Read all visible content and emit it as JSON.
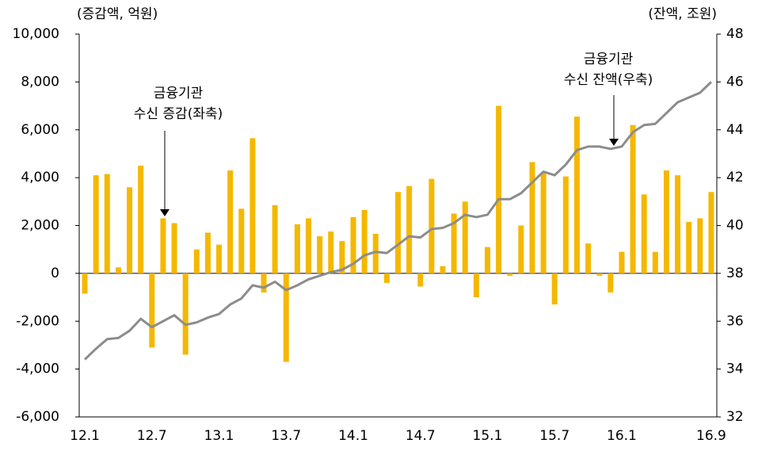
{
  "chart_data": {
    "type": "bar-line",
    "y_label": "(증감액, 억원)",
    "y2_label": "(잔액, 조원)",
    "categories": [
      "12.1",
      null,
      null,
      null,
      null,
      null,
      "12.7",
      null,
      null,
      null,
      null,
      null,
      "13.1",
      null,
      null,
      null,
      null,
      null,
      "13.7",
      null,
      null,
      null,
      null,
      null,
      "14.1",
      null,
      null,
      null,
      null,
      null,
      "14.7",
      null,
      null,
      null,
      null,
      null,
      "15.1",
      null,
      null,
      null,
      null,
      null,
      "15.7",
      null,
      null,
      null,
      null,
      null,
      "16.1",
      null,
      null,
      null,
      null,
      null,
      null,
      null,
      "16.9"
    ],
    "series": [
      {
        "type": "bar",
        "color": "#f5b800",
        "values": [
          -850,
          4100,
          4150,
          250,
          3600,
          4500,
          -3100,
          2300,
          2100,
          -3400,
          1000,
          1700,
          1200,
          4300,
          2700,
          5650,
          -800,
          2850,
          -3700,
          2050,
          2300,
          1550,
          1750,
          1350,
          2350,
          2650,
          1650,
          -400,
          3400,
          3650,
          -550,
          3950,
          300,
          2500,
          3000,
          -1000,
          1100,
          7000,
          -100,
          2000,
          4650,
          4200,
          -1300,
          4050,
          6550,
          1250,
          -100,
          -800,
          900,
          6200,
          3300,
          900,
          4300,
          4100,
          2150,
          2300,
          3400
        ]
      },
      {
        "type": "line",
        "axis": "y2",
        "color": "#8c8c8c",
        "values": [
          34.4,
          34.85,
          35.25,
          35.3,
          35.6,
          36.1,
          35.75,
          36.0,
          36.25,
          35.85,
          35.95,
          36.15,
          36.3,
          36.7,
          36.95,
          37.5,
          37.4,
          37.65,
          37.3,
          37.5,
          37.75,
          37.9,
          38.05,
          38.15,
          38.4,
          38.75,
          38.9,
          38.85,
          39.2,
          39.55,
          39.5,
          39.85,
          39.9,
          40.1,
          40.45,
          40.35,
          40.45,
          41.1,
          41.1,
          41.35,
          41.8,
          42.25,
          42.1,
          42.55,
          43.15,
          43.3,
          43.3,
          43.2,
          43.3,
          43.9,
          44.2,
          44.25,
          44.7,
          45.15,
          45.35,
          45.55,
          46.0
        ]
      }
    ],
    "ylim": [
      -6000,
      10000
    ],
    "yticks": [
      {
        "value": -6000,
        "label": "-6,000"
      },
      {
        "value": -4000,
        "label": "-4,000"
      },
      {
        "value": -2000,
        "label": "-2,000"
      },
      0,
      {
        "value": 2000,
        "label": "2,000"
      },
      {
        "value": 4000,
        "label": "4,000"
      },
      {
        "value": 6000,
        "label": "6,000"
      },
      {
        "value": 8000,
        "label": "8,000"
      },
      {
        "value": 10000,
        "label": "10,000"
      }
    ],
    "y2lim": [
      32,
      48
    ],
    "y2ticks": [
      32,
      34,
      36,
      38,
      40,
      42,
      44,
      46,
      48
    ],
    "grid": false,
    "annotations": [
      {
        "lines": [
          "금융기관",
          "수신 증감(좌축)"
        ]
      },
      {
        "lines": [
          "금융기관",
          "수신 잔액(우축)"
        ]
      }
    ]
  }
}
